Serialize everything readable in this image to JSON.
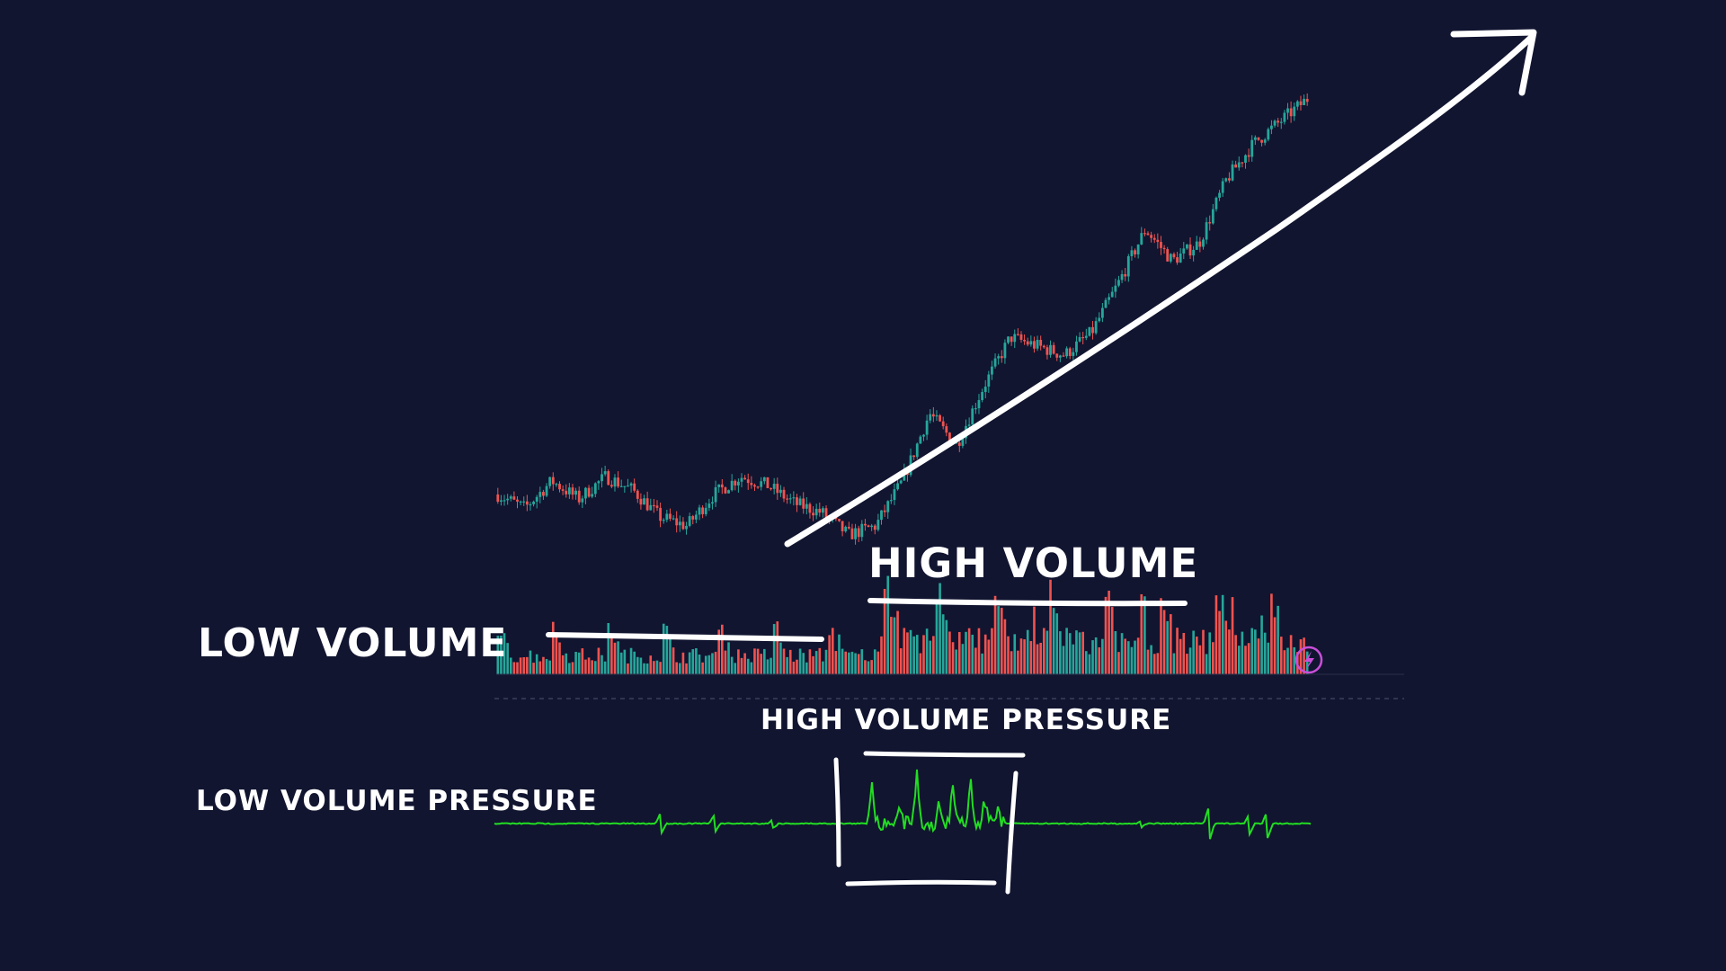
{
  "annotations": {
    "high_volume": "HIGH VOLUME",
    "low_volume": "LOW VOLUME",
    "high_volume_pressure": "HIGH VOLUME PRESSURE",
    "low_volume_pressure": "LOW VOLUME PRESSURE"
  },
  "icons": {
    "chart_badge": "lightning-icon"
  },
  "colors": {
    "background": "#111530",
    "up_candle": "#26a69a",
    "down_candle": "#ef5350",
    "pressure_line": "#22dd22",
    "annotation": "#ffffff",
    "badge": "#c84fd8"
  },
  "chart_data": [
    {
      "type": "candlestick",
      "grid": false,
      "legend": "none",
      "trend": "uptrend",
      "price_path": [
        100,
        97,
        103,
        99,
        104,
        101,
        95,
        93,
        100,
        104,
        102,
        98,
        96,
        91,
        93,
        103,
        118,
        111,
        124,
        135,
        133,
        131,
        136,
        147,
        159,
        152,
        156,
        170,
        178,
        183,
        188
      ]
    },
    {
      "type": "bar",
      "name": "volume",
      "regime_low_volume": "first half",
      "regime_high_volume": "second half"
    },
    {
      "type": "line",
      "name": "volume pressure",
      "spikes": [
        0.9,
        0.3,
        1.0,
        0.5,
        0.8,
        0.2,
        0.5,
        0.4,
        0.6,
        0.3
      ]
    }
  ]
}
